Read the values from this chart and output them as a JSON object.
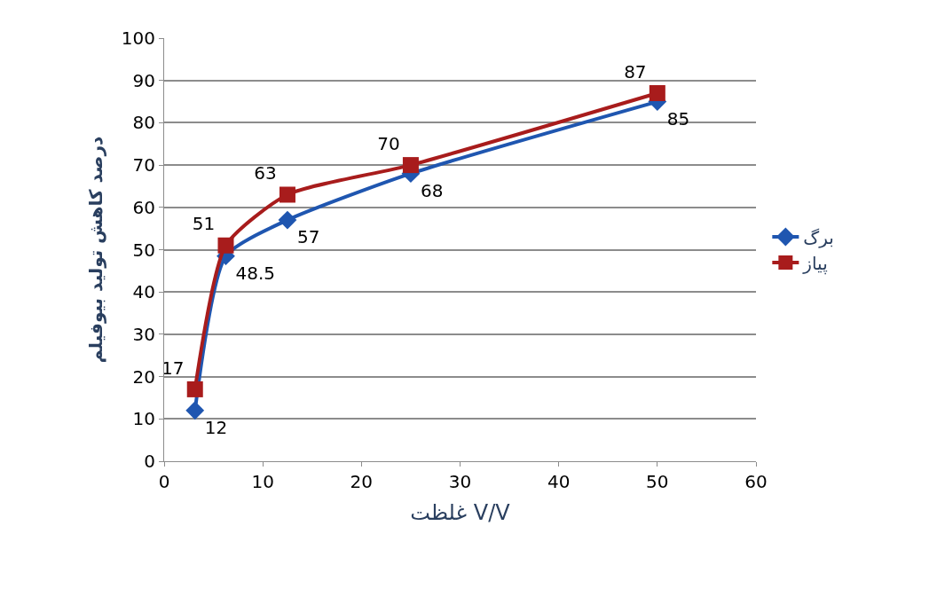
{
  "chart_data": {
    "type": "line",
    "xlabel": "غلظت V/V",
    "ylabel": "درصد کاهش تولید بیوفیلم",
    "x": [
      3.125,
      6.25,
      12.5,
      25,
      50
    ],
    "series": [
      {
        "name": "برگ",
        "color": "#1f56b0",
        "values": [
          12,
          48.5,
          57,
          68,
          85
        ],
        "marker": "diamond"
      },
      {
        "name": "پیاز",
        "color": "#a81c1c",
        "values": [
          17,
          51,
          63,
          70,
          87
        ],
        "marker": "square"
      }
    ],
    "xlim": [
      0,
      60
    ],
    "xticks": [
      0,
      10,
      20,
      30,
      40,
      50,
      60
    ],
    "ylim": [
      0,
      100
    ],
    "yticks": [
      0,
      10,
      20,
      30,
      40,
      50,
      60,
      70,
      80,
      90,
      100
    ],
    "grid": "y",
    "legend": "right",
    "data_labels": true
  }
}
